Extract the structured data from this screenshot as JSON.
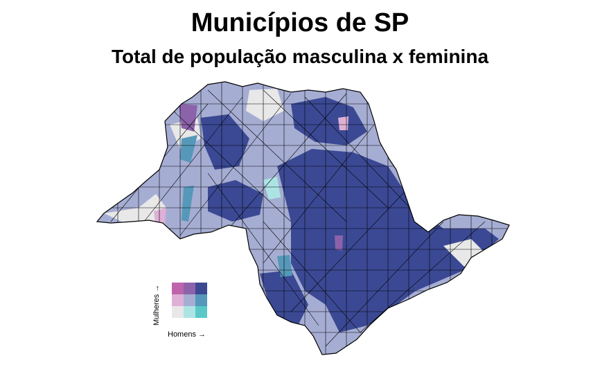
{
  "title": "Municípios de SP",
  "subtitle": "Total de população masculina x feminina",
  "legend": {
    "y_label": "Mulheres →",
    "x_label": "Homens →",
    "colors": [
      [
        "#be64ac",
        "#8c62aa",
        "#3b4994"
      ],
      [
        "#dfb0d6",
        "#a5add3",
        "#5698b9"
      ],
      [
        "#e8e8e8",
        "#ace4e4",
        "#5ac8c8"
      ]
    ]
  },
  "map": {
    "state": "SP",
    "border_color": "#000000",
    "class_colors": {
      "high_high": "#3b4994",
      "mid_mid": "#a5add3",
      "low_low": "#e8e8e8",
      "high_women_low_men": "#be64ac",
      "mid_women_low_men": "#dfb0d6",
      "high_men_mid_women": "#5698b9",
      "mid_men_low_women": "#ace4e4",
      "mid_high": "#8c62aa"
    }
  }
}
